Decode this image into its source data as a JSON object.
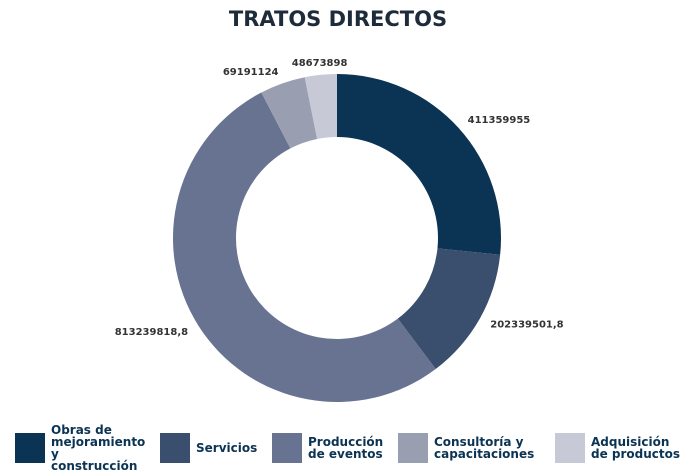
{
  "chart_data": {
    "type": "donut",
    "title": "TRATOS DIRECTOS",
    "categories": [
      "Obras de mejoramiento y construcción",
      "Servicios",
      "Producción de eventos",
      "Consultoría y capacitaciones",
      "Adquisición de productos"
    ],
    "values": [
      411359955,
      202339501.8,
      813239818.8,
      69191124,
      48673898
    ],
    "value_labels": [
      "411359955",
      "202339501,8",
      "813239818,8",
      "69191124",
      "48673898"
    ],
    "colors": [
      "#0b3353",
      "#3a4e6d",
      "#687391",
      "#9a9eb1",
      "#c8c9d6"
    ],
    "legend": "bottom"
  }
}
